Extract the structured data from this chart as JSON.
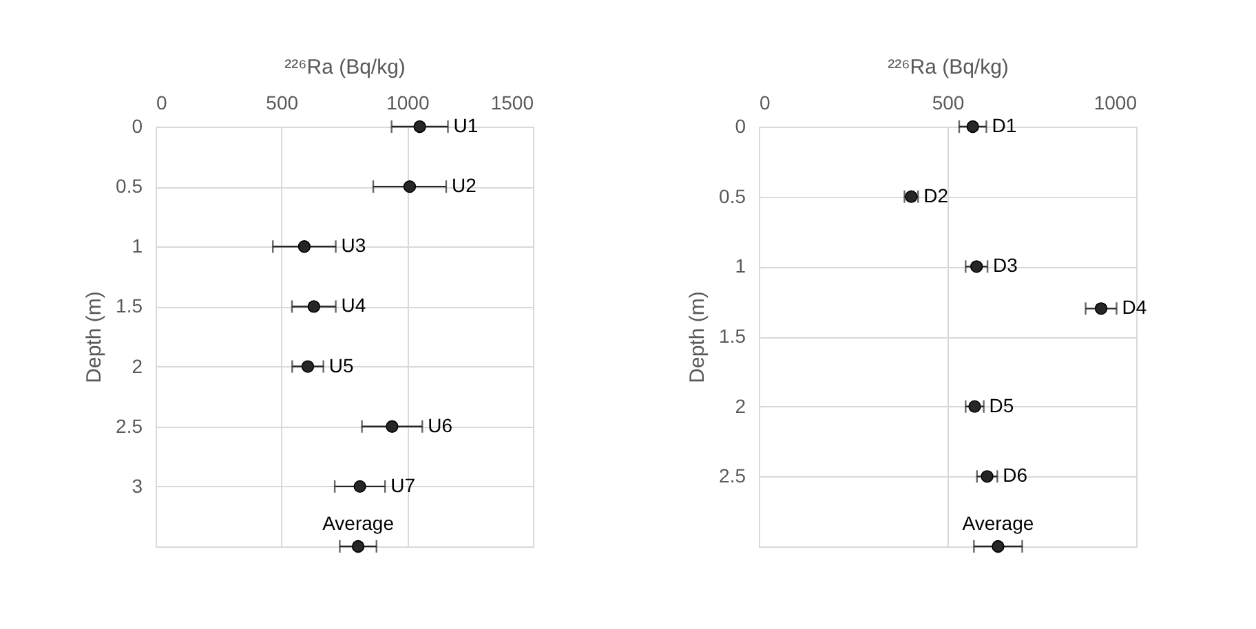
{
  "chart_data": [
    {
      "type": "scatter",
      "xlabel": "²²⁶Ra (Bq/kg)",
      "ylabel": "Depth (m)",
      "xlim": [
        0,
        1500
      ],
      "xticks": [
        0,
        500,
        1000,
        1500
      ],
      "ylim": [
        3.5,
        0
      ],
      "yticks": [
        0,
        0.5,
        1,
        1.5,
        2,
        2.5,
        3
      ],
      "grid": true,
      "marker": "circle",
      "series": [
        {
          "color": "#262626",
          "x": [
            1050,
            1010,
            591,
            629,
            605,
            940,
            812,
            805
          ],
          "values": [
            0,
            0.5,
            1,
            1.5,
            2,
            2.5,
            3,
            3.5
          ],
          "xerrors": [
            112,
            145,
            125,
            87,
            62,
            120,
            100,
            73
          ],
          "value_labels": [
            "U1",
            "U2",
            "U3",
            "U4",
            "U5",
            "U6",
            "U7",
            "Average"
          ]
        }
      ]
    },
    {
      "type": "scatter",
      "xlabel": "²²⁶Ra (Bq/kg)",
      "ylabel": "Depth (m)",
      "xlim": [
        0,
        1000
      ],
      "xticks": [
        0,
        500,
        1000
      ],
      "ylim": [
        3,
        0
      ],
      "yticks": [
        0,
        0.5,
        1,
        1.5,
        2,
        2.5
      ],
      "grid": true,
      "marker": "circle",
      "series": [
        {
          "color": "#262626",
          "x": [
            567,
            404,
            577,
            907,
            572,
            605,
            634
          ],
          "values": [
            0,
            0.5,
            1,
            1.3,
            2,
            2.5,
            3
          ],
          "xerrors": [
            36,
            18,
            29,
            41,
            24,
            27,
            64
          ],
          "value_labels": [
            "D1",
            "D2",
            "D3",
            "D4",
            "D5",
            "D6",
            "Average"
          ]
        }
      ]
    }
  ]
}
